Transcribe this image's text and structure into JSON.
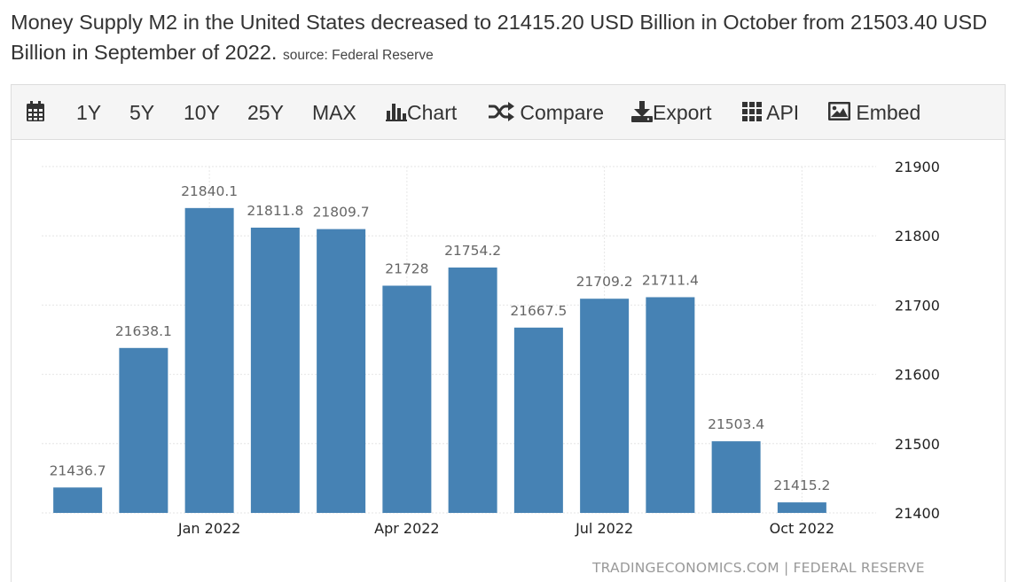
{
  "headline": {
    "text": "Money Supply M2 in the United States decreased to 21415.20 USD Billion in October from 21503.40 USD Billion in September of 2022.",
    "source": "source: Federal Reserve"
  },
  "toolbar": {
    "items": [
      {
        "label": "",
        "icon": "calendar-icon"
      },
      {
        "label": "1Y"
      },
      {
        "label": "5Y"
      },
      {
        "label": "10Y"
      },
      {
        "label": "25Y"
      },
      {
        "label": "MAX"
      },
      {
        "label": "Chart",
        "icon": "bar-chart-icon"
      },
      {
        "label": "Compare",
        "icon": "shuffle-icon"
      },
      {
        "label": "Export",
        "icon": "download-icon"
      },
      {
        "label": "API",
        "icon": "grid-icon"
      },
      {
        "label": "Embed",
        "icon": "image-icon"
      }
    ]
  },
  "chart_data": {
    "type": "bar",
    "categories": [
      "Nov 2021",
      "Dec 2021",
      "Jan 2022",
      "Feb 2022",
      "Mar 2022",
      "Apr 2022",
      "May 2022",
      "Jun 2022",
      "Jul 2022",
      "Aug 2022",
      "Sep 2022",
      "Oct 2022"
    ],
    "values": [
      21436.7,
      21638.1,
      21840.1,
      21811.8,
      21809.7,
      21728,
      21754.2,
      21667.5,
      21709.2,
      21711.4,
      21503.4,
      21415.2
    ],
    "value_labels": [
      "21436.7",
      "21638.1",
      "21840.1",
      "21811.8",
      "21809.7",
      "21728",
      "21754.2",
      "21667.5",
      "21709.2",
      "21711.4",
      "21503.4",
      "21415.2"
    ],
    "x_tick_labels": [
      {
        "index": 2,
        "label": "Jan 2022"
      },
      {
        "index": 5,
        "label": "Apr 2022"
      },
      {
        "index": 8,
        "label": "Jul 2022"
      },
      {
        "index": 11,
        "label": "Oct 2022"
      }
    ],
    "y_ticks": [
      21400,
      21500,
      21600,
      21700,
      21800,
      21900
    ],
    "ylim": [
      21400,
      21900
    ],
    "y_axis_side": "right",
    "grid": true,
    "bar_color": "#4682b4",
    "title": "",
    "xlabel": "",
    "ylabel": ""
  },
  "credit": "TRADINGECONOMICS.COM | FEDERAL RESERVE"
}
